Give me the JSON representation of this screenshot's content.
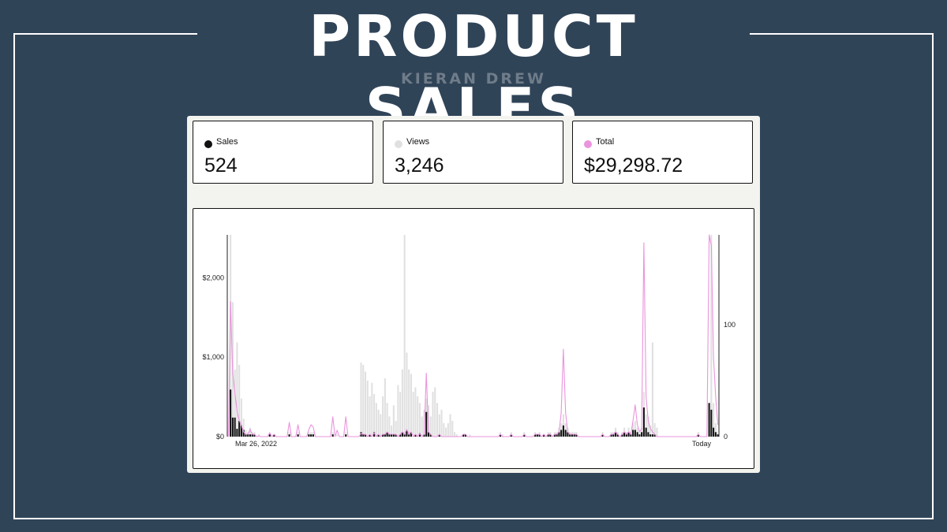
{
  "header": {
    "title": "PRODUCT SALES",
    "subtitle": "KIERAN DREW"
  },
  "stats": [
    {
      "label": "Sales",
      "value": "524",
      "color": "#111111"
    },
    {
      "label": "Views",
      "value": "3,246",
      "color": "#e0e0e0"
    },
    {
      "label": "Total",
      "value": "$29,298.72",
      "color": "#ea94de"
    }
  ],
  "chart_data": {
    "type": "bar",
    "left_axis": {
      "ticks": [
        "$0",
        "$1,000",
        "$2,000"
      ],
      "ylim": [
        0,
        2540
      ]
    },
    "right_axis": {
      "ticks": [
        "0",
        "100"
      ],
      "ylim": [
        0,
        180
      ]
    },
    "x_labels": [
      "Mar 26, 2022",
      "Today"
    ],
    "series": [
      {
        "name": "Sales",
        "color": "#111111",
        "kind": "bar"
      },
      {
        "name": "Views",
        "color": "#e0e0e0",
        "kind": "bar"
      },
      {
        "name": "Total",
        "color": "#ea94de",
        "kind": "line"
      }
    ],
    "sales": [
      0,
      42,
      17,
      17,
      7,
      14,
      10,
      6,
      2,
      2,
      2,
      2,
      2,
      0,
      0,
      0,
      0,
      0,
      0,
      2,
      0,
      2,
      0,
      0,
      0,
      0,
      0,
      0,
      2,
      0,
      0,
      0,
      2,
      0,
      0,
      0,
      0,
      2,
      2,
      2,
      0,
      0,
      0,
      0,
      0,
      0,
      0,
      0,
      2,
      0,
      0,
      0,
      0,
      0,
      2,
      0,
      0,
      0,
      0,
      0,
      0,
      4,
      2,
      2,
      0,
      2,
      0,
      4,
      0,
      2,
      0,
      2,
      2,
      4,
      2,
      2,
      2,
      2,
      0,
      2,
      4,
      2,
      6,
      2,
      4,
      0,
      2,
      0,
      3,
      0,
      2,
      22,
      4,
      2,
      0,
      0,
      0,
      2,
      0,
      0,
      0,
      0,
      0,
      0,
      0,
      0,
      0,
      0,
      2,
      2,
      0,
      0,
      0,
      0,
      0,
      0,
      0,
      0,
      0,
      0,
      0,
      0,
      0,
      0,
      0,
      2,
      0,
      0,
      0,
      0,
      2,
      0,
      0,
      0,
      0,
      0,
      2,
      0,
      0,
      0,
      0,
      2,
      2,
      2,
      0,
      2,
      0,
      2,
      2,
      0,
      2,
      2,
      4,
      6,
      10,
      6,
      4,
      2,
      2,
      2,
      2,
      0,
      0,
      0,
      0,
      0,
      0,
      0,
      0,
      0,
      0,
      0,
      2,
      0,
      0,
      0,
      2,
      2,
      4,
      2,
      0,
      2,
      4,
      2,
      4,
      2,
      6,
      6,
      4,
      2,
      4,
      26,
      8,
      4,
      2,
      2,
      2,
      0,
      0,
      0,
      0,
      0,
      0,
      0,
      0,
      0,
      0,
      0,
      0,
      0,
      0,
      0,
      0,
      0,
      0,
      0,
      2,
      0,
      0,
      0,
      0,
      30,
      24,
      8,
      4,
      2
    ],
    "views": [
      0,
      180,
      120,
      60,
      84,
      64,
      34,
      16,
      6,
      4,
      8,
      4,
      4,
      0,
      2,
      0,
      0,
      0,
      0,
      2,
      0,
      2,
      0,
      0,
      0,
      0,
      0,
      0,
      4,
      0,
      0,
      0,
      4,
      0,
      0,
      0,
      0,
      4,
      4,
      4,
      0,
      0,
      0,
      0,
      0,
      0,
      0,
      0,
      4,
      0,
      2,
      0,
      0,
      0,
      4,
      0,
      0,
      0,
      0,
      0,
      0,
      66,
      64,
      58,
      50,
      36,
      48,
      38,
      30,
      24,
      20,
      36,
      52,
      30,
      18,
      10,
      28,
      14,
      46,
      40,
      60,
      180,
      75,
      60,
      56,
      40,
      44,
      36,
      30,
      18,
      24,
      34,
      28,
      18,
      40,
      44,
      30,
      20,
      24,
      12,
      8,
      12,
      20,
      14,
      4,
      2,
      0,
      0,
      2,
      2,
      0,
      2,
      0,
      0,
      0,
      0,
      0,
      0,
      0,
      0,
      0,
      0,
      0,
      0,
      0,
      4,
      2,
      0,
      0,
      0,
      4,
      0,
      0,
      0,
      0,
      0,
      4,
      0,
      0,
      0,
      0,
      4,
      2,
      4,
      0,
      2,
      0,
      4,
      4,
      0,
      4,
      4,
      8,
      12,
      20,
      12,
      8,
      4,
      4,
      4,
      4,
      0,
      0,
      0,
      0,
      0,
      0,
      0,
      0,
      0,
      0,
      0,
      4,
      0,
      0,
      0,
      4,
      4,
      8,
      4,
      0,
      4,
      8,
      4,
      8,
      4,
      12,
      14,
      8,
      4,
      8,
      40,
      20,
      18,
      10,
      84,
      12,
      8,
      0,
      0,
      0,
      0,
      0,
      0,
      0,
      0,
      0,
      0,
      0,
      0,
      0,
      0,
      0,
      0,
      0,
      0,
      4,
      0,
      0,
      0,
      0,
      10,
      180,
      30,
      12,
      4
    ],
    "total": [
      0,
      1700,
      800,
      550,
      320,
      200,
      140,
      60,
      30,
      30,
      90,
      30,
      30,
      0,
      10,
      0,
      0,
      0,
      0,
      50,
      0,
      30,
      0,
      0,
      0,
      0,
      0,
      0,
      180,
      0,
      0,
      0,
      150,
      0,
      0,
      0,
      0,
      90,
      150,
      120,
      0,
      0,
      0,
      0,
      0,
      0,
      0,
      0,
      250,
      0,
      80,
      0,
      0,
      0,
      250,
      0,
      0,
      0,
      0,
      0,
      0,
      40,
      30,
      30,
      0,
      30,
      0,
      50,
      0,
      30,
      0,
      30,
      30,
      60,
      30,
      30,
      30,
      30,
      0,
      30,
      60,
      30,
      90,
      30,
      60,
      0,
      30,
      0,
      40,
      0,
      30,
      800,
      60,
      30,
      0,
      0,
      0,
      30,
      0,
      0,
      0,
      0,
      0,
      0,
      0,
      0,
      0,
      0,
      30,
      30,
      0,
      0,
      0,
      0,
      0,
      0,
      0,
      0,
      0,
      0,
      0,
      0,
      0,
      0,
      0,
      30,
      0,
      0,
      0,
      0,
      30,
      0,
      0,
      0,
      0,
      0,
      30,
      0,
      0,
      0,
      0,
      30,
      30,
      30,
      0,
      30,
      0,
      30,
      30,
      0,
      30,
      30,
      60,
      300,
      1100,
      300,
      60,
      30,
      30,
      30,
      30,
      0,
      0,
      0,
      0,
      0,
      0,
      0,
      0,
      0,
      0,
      0,
      30,
      0,
      0,
      0,
      30,
      30,
      60,
      30,
      0,
      30,
      60,
      30,
      60,
      30,
      200,
      400,
      150,
      60,
      100,
      2440,
      500,
      200,
      100,
      60,
      30,
      0,
      0,
      0,
      0,
      0,
      0,
      0,
      0,
      0,
      0,
      0,
      0,
      0,
      0,
      0,
      0,
      0,
      0,
      0,
      30,
      0,
      0,
      0,
      0,
      2540,
      2400,
      1000,
      500,
      150
    ]
  }
}
